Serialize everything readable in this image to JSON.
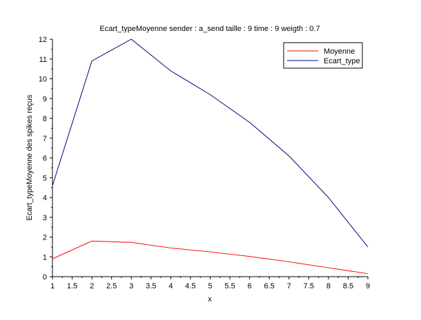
{
  "chart_data": {
    "type": "line",
    "title": "Ecart_typeMoyenne sender : a_send taille : 9 time : 9 weigth : 0.7",
    "xlabel": "x",
    "ylabel": "Ecart_typeMoyenne des spikes reçus",
    "xlim": [
      1,
      9
    ],
    "ylim": [
      0,
      12
    ],
    "x_ticks": [
      1,
      1.5,
      2,
      2.5,
      3,
      3.5,
      4,
      4.5,
      5,
      5.5,
      6,
      6.5,
      7,
      7.5,
      8,
      8.5,
      9
    ],
    "y_ticks": [
      0,
      1,
      2,
      3,
      4,
      5,
      6,
      7,
      8,
      9,
      10,
      11,
      12
    ],
    "x": [
      1,
      2,
      3,
      4,
      5,
      6,
      7,
      8,
      9
    ],
    "series": [
      {
        "name": "Moyenne",
        "color": "#ff0000",
        "values": [
          0.9,
          1.8,
          1.73,
          1.45,
          1.25,
          1.02,
          0.75,
          0.45,
          0.15
        ]
      },
      {
        "name": "Ecart_type",
        "color": "#00007f",
        "values": [
          4.6,
          10.9,
          12.0,
          10.4,
          9.2,
          7.8,
          6.1,
          4.0,
          1.5
        ]
      }
    ],
    "grid": false,
    "legend_position": "top-right"
  }
}
